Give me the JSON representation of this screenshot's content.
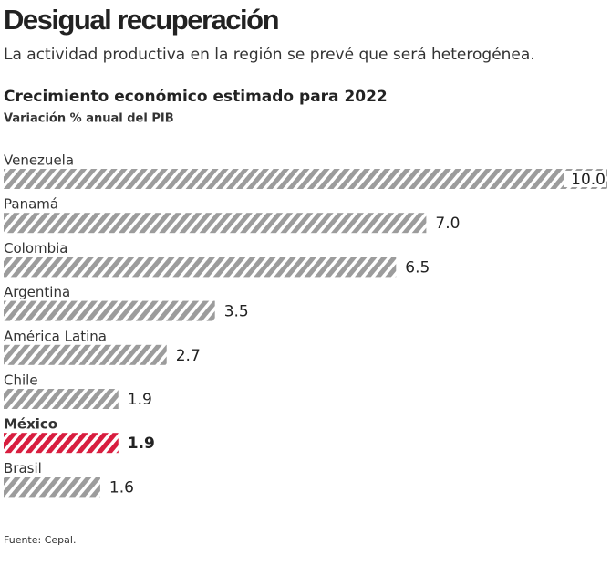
{
  "chart_data": {
    "type": "bar",
    "orientation": "horizontal",
    "title": "Desigual recuperación",
    "subtitle": "La actividad productiva en la región se prevé que será heterogénea.",
    "chart_title": "Crecimiento económico estimado para 2022",
    "chart_subtitle": "Variación % anual del PIB",
    "source": "Fuente: Cepal.",
    "categories": [
      "Venezuela",
      "Panamá",
      "Colombia",
      "Argentina",
      "América Latina",
      "Chile",
      "México",
      "Brasil"
    ],
    "values": [
      10.0,
      7.0,
      6.5,
      3.5,
      2.7,
      1.9,
      1.9,
      1.6
    ],
    "value_labels": [
      "10.0",
      "7.0",
      "6.5",
      "3.5",
      "2.7",
      "1.9",
      "1.9",
      "1.6"
    ],
    "colors": [
      "#9c9c9c",
      "#9c9c9c",
      "#9c9c9c",
      "#9c9c9c",
      "#9c9c9c",
      "#9c9c9c",
      "#d81e3f",
      "#9c9c9c"
    ]
  }
}
